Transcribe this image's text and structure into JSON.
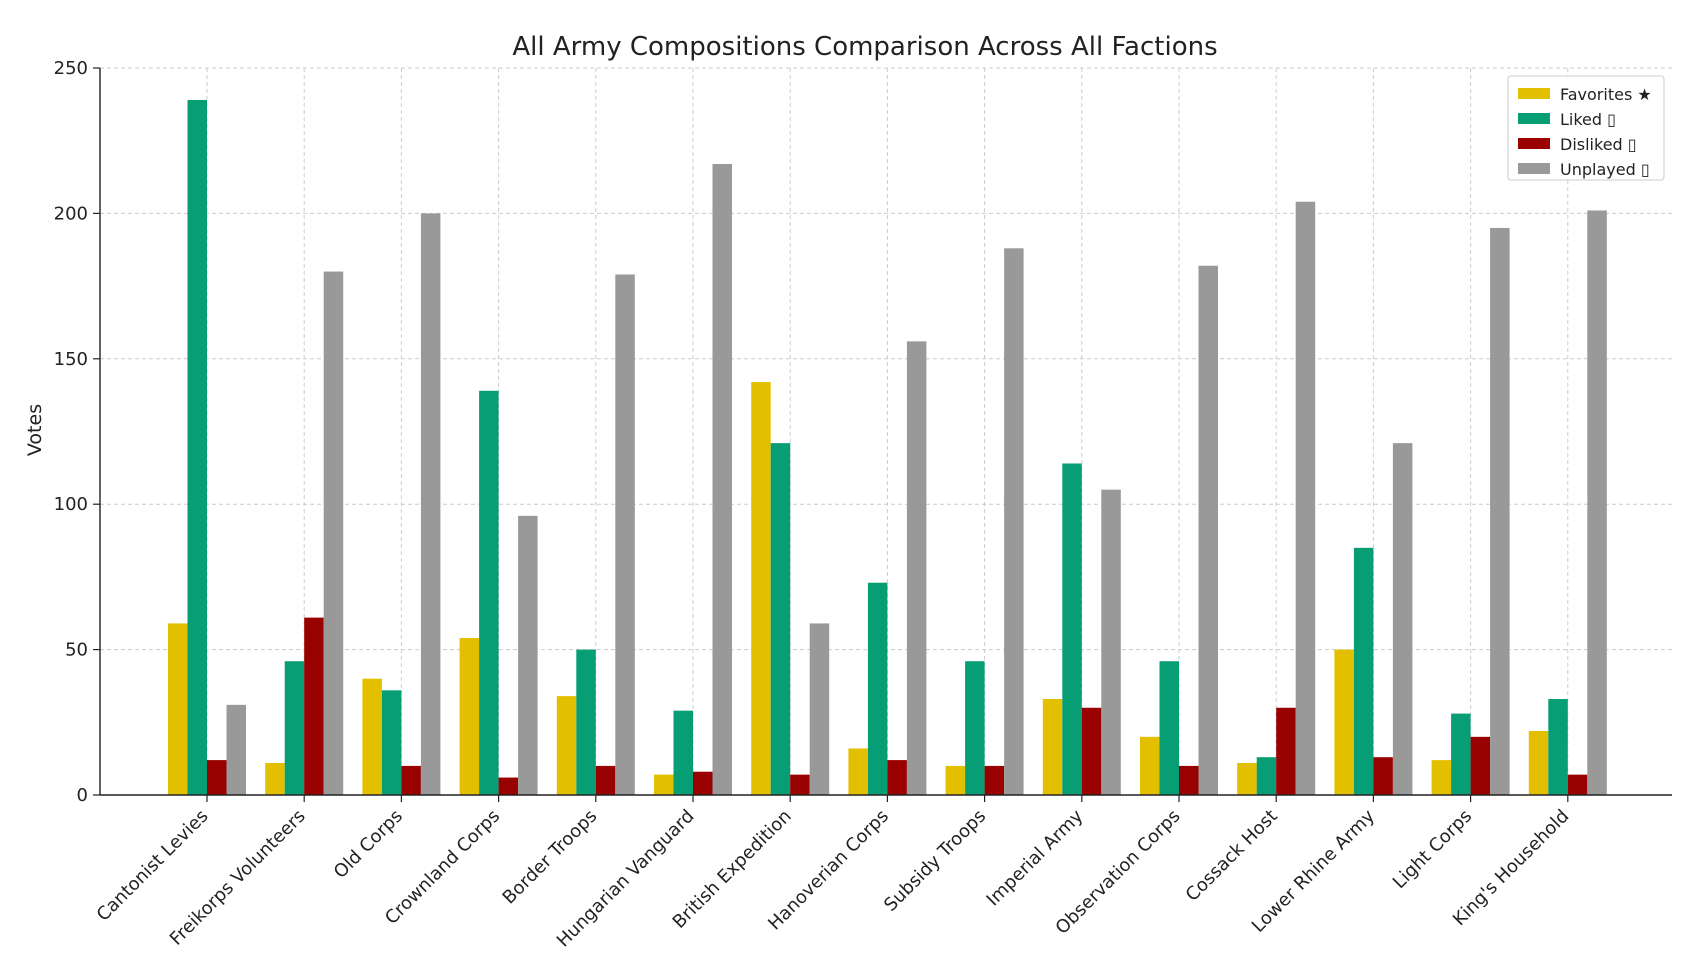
{
  "chart_data": {
    "type": "bar",
    "title": "All Army Compositions Comparison Across All Factions",
    "xlabel": "",
    "ylabel": "Votes",
    "ylim": [
      0,
      250
    ],
    "yticks": [
      "0",
      "50",
      "100",
      "150",
      "200",
      "250"
    ],
    "grid": true,
    "legend_position": "top-right",
    "categories": [
      "Cantonist Levies",
      "Freikorps Volunteers",
      "Old Corps",
      "Crownland Corps",
      "Border Troops",
      "Hungarian Vanguard",
      "British Expedition",
      "Hanoverian Corps",
      "Subsidy Troops",
      "Imperial Army",
      "Observation Corps",
      "Cossack Host",
      "Lower Rhine Army",
      "Light Corps",
      "King's Household"
    ],
    "series": [
      {
        "name": "Favorites ★",
        "color": "#e2c000",
        "values": [
          59,
          11,
          40,
          54,
          34,
          7,
          142,
          16,
          10,
          33,
          20,
          11,
          50,
          12,
          22
        ]
      },
      {
        "name": "Liked ▯",
        "color": "#079e76",
        "values": [
          239,
          46,
          36,
          139,
          50,
          29,
          121,
          73,
          46,
          114,
          46,
          13,
          85,
          28,
          33
        ]
      },
      {
        "name": "Disliked ▯",
        "color": "#990000",
        "values": [
          12,
          61,
          10,
          6,
          10,
          8,
          7,
          12,
          10,
          30,
          10,
          30,
          13,
          20,
          7
        ]
      },
      {
        "name": "Unplayed ▯",
        "color": "#999999",
        "values": [
          31,
          180,
          200,
          96,
          179,
          217,
          59,
          156,
          188,
          105,
          182,
          204,
          121,
          195,
          201
        ]
      }
    ]
  }
}
